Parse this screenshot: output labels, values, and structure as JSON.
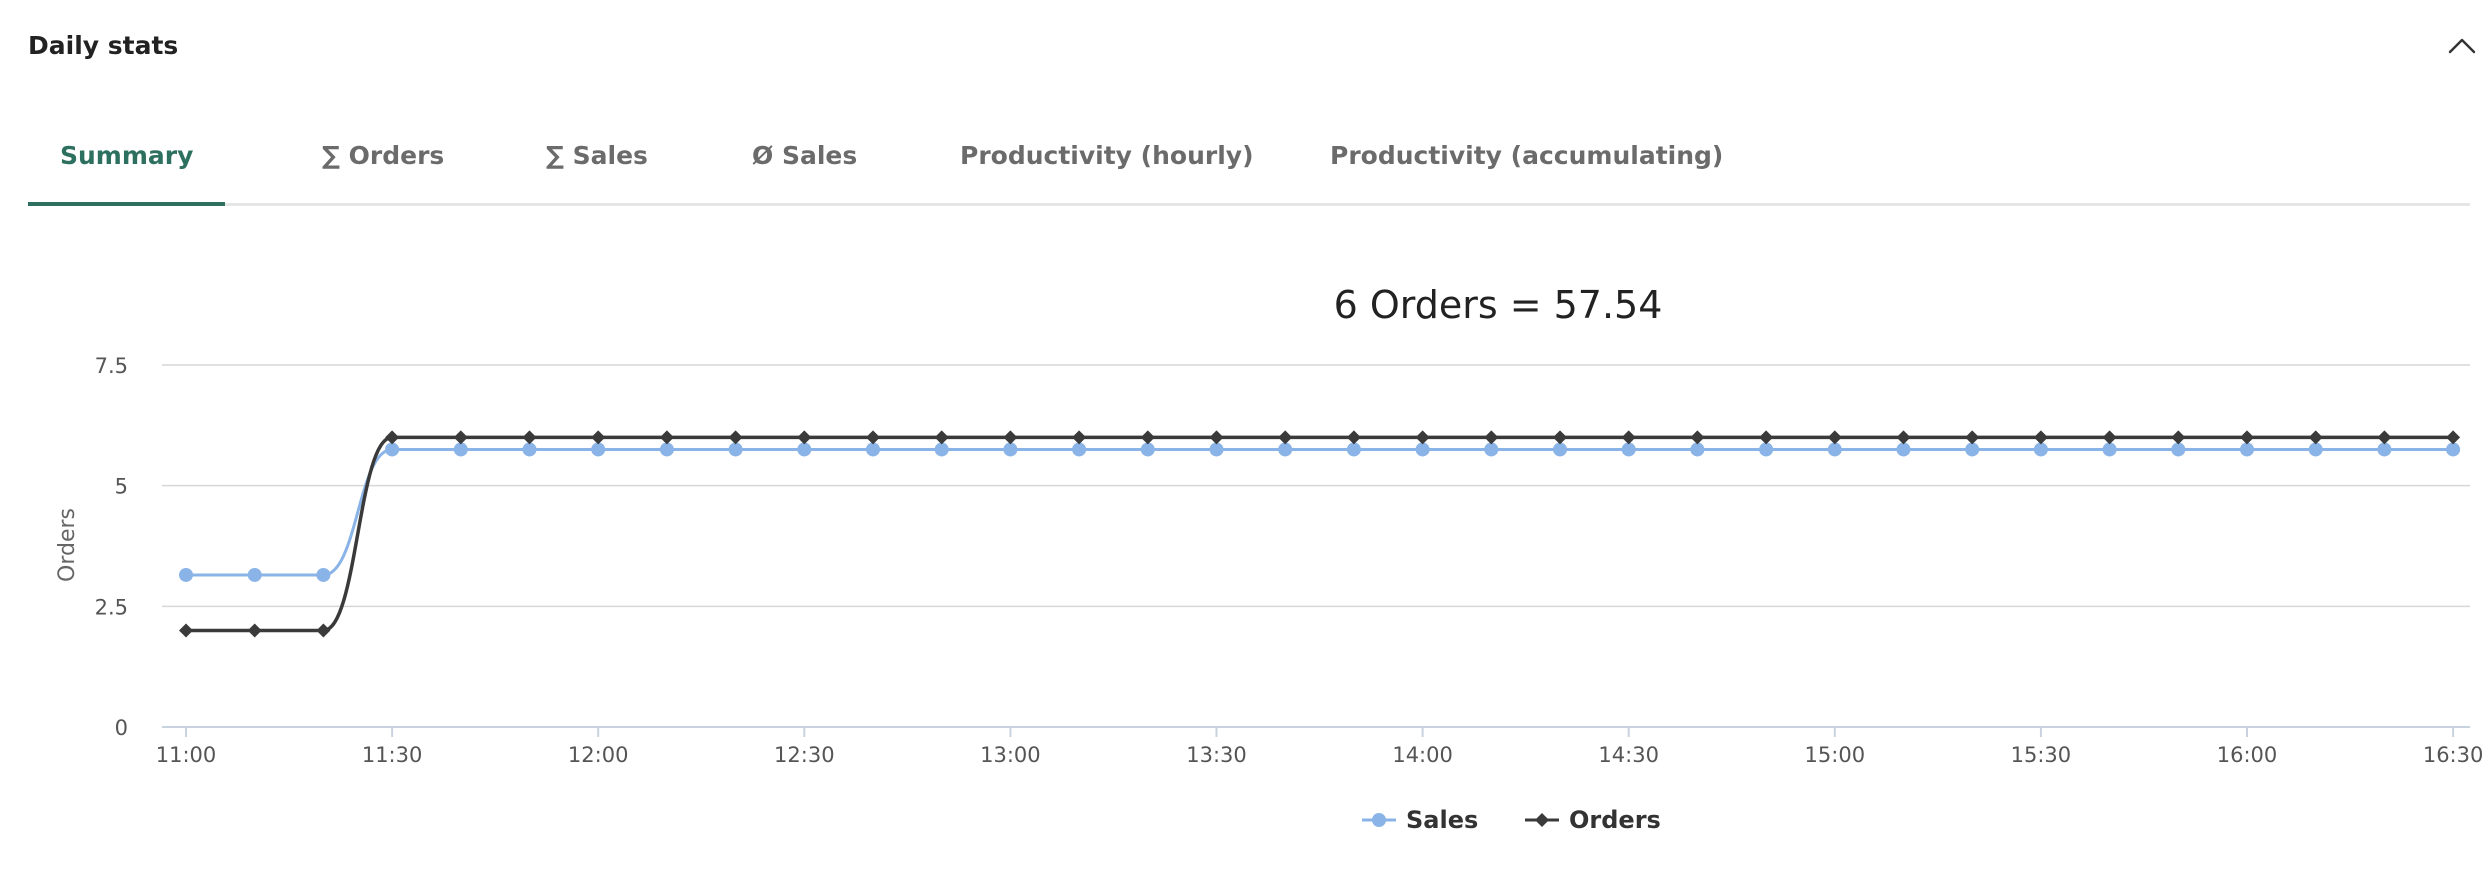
{
  "panel": {
    "title": "Daily stats",
    "collapse_icon": "chevron-up-icon"
  },
  "tabs": [
    {
      "label": "Summary",
      "active": true
    },
    {
      "label": "∑ Orders",
      "active": false
    },
    {
      "label": "∑ Sales",
      "active": false
    },
    {
      "label": "Ø Sales",
      "active": false
    },
    {
      "label": "Productivity (hourly)",
      "active": false
    },
    {
      "label": "Productivity (accumulating)",
      "active": false
    }
  ],
  "colors": {
    "accent": "#2e7060",
    "sales": "#8ab4e8",
    "orders": "#3a3a3a",
    "grid": "#d6d6d6",
    "tab_inactive": "#6b6b6b"
  },
  "chart_data": {
    "type": "line",
    "title": "6 Orders = 57.54",
    "ylabel": "Orders",
    "xlabel": "",
    "ylim": [
      0,
      7.5
    ],
    "yticks": [
      "0",
      "2.5",
      "5",
      "7.5"
    ],
    "grid": true,
    "legend_position": "bottom-center",
    "x": [
      "11:00",
      "11:10",
      "11:20",
      "11:30",
      "11:40",
      "11:50",
      "12:00",
      "12:10",
      "12:20",
      "12:30",
      "12:40",
      "12:50",
      "13:00",
      "13:10",
      "13:20",
      "13:30",
      "13:40",
      "13:50",
      "14:00",
      "14:10",
      "14:20",
      "14:30",
      "14:40",
      "14:50",
      "15:00",
      "15:10",
      "15:20",
      "15:30",
      "15:40",
      "15:50",
      "16:00",
      "16:10",
      "16:20",
      "16:30"
    ],
    "xticks": [
      "11:00",
      "11:30",
      "12:00",
      "12:30",
      "13:00",
      "13:30",
      "14:00",
      "14:30",
      "15:00",
      "15:30",
      "16:00",
      "16:30"
    ],
    "series": [
      {
        "name": "Sales",
        "marker": "circle",
        "values": [
          3.15,
          3.15,
          3.15,
          5.75,
          5.75,
          5.75,
          5.75,
          5.75,
          5.75,
          5.75,
          5.75,
          5.75,
          5.75,
          5.75,
          5.75,
          5.75,
          5.75,
          5.75,
          5.75,
          5.75,
          5.75,
          5.75,
          5.75,
          5.75,
          5.75,
          5.75,
          5.75,
          5.75,
          5.75,
          5.75,
          5.75,
          5.75,
          5.75,
          5.75
        ]
      },
      {
        "name": "Orders",
        "marker": "diamond",
        "values": [
          2,
          2,
          2,
          6,
          6,
          6,
          6,
          6,
          6,
          6,
          6,
          6,
          6,
          6,
          6,
          6,
          6,
          6,
          6,
          6,
          6,
          6,
          6,
          6,
          6,
          6,
          6,
          6,
          6,
          6,
          6,
          6,
          6,
          6
        ]
      }
    ]
  }
}
